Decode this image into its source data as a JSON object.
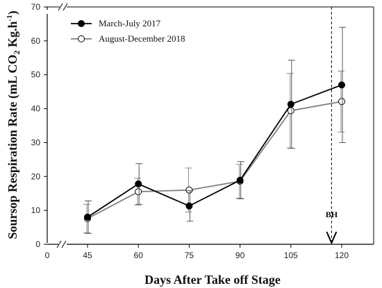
{
  "chart_data": {
    "type": "line",
    "xlabel": "Days After Take off Stage",
    "ylabel_parts": {
      "prefix": "Soursop Respiration Rate (mL CO",
      "subscript": "2",
      "middle": " Kg.h",
      "superscript": "-1",
      "suffix": ")"
    },
    "x_ticks": [
      "0",
      "45",
      "60",
      "75",
      "90",
      "105",
      "120"
    ],
    "y_ticks": [
      "0",
      "10",
      "20",
      "30",
      "40",
      "50",
      "60",
      "70"
    ],
    "ylim": [
      0,
      70
    ],
    "x_axis_break": "between 0 and 45",
    "y_axis_break": "near 70",
    "legend_position": "top-left",
    "categories": [
      45,
      60,
      75,
      90,
      105,
      120
    ],
    "series": [
      {
        "name": "March-July 2017",
        "marker": "filled-circle",
        "color": "#000000",
        "values": [
          8.0,
          17.8,
          11.3,
          18.9,
          41.3,
          47.0
        ],
        "error": [
          4.8,
          6.0,
          4.5,
          5.5,
          13.0,
          17.0
        ]
      },
      {
        "name": "August-December 2018",
        "marker": "open-circle",
        "color": "#808080",
        "values": [
          7.6,
          15.5,
          16.0,
          18.6,
          39.4,
          42.1
        ],
        "error": [
          4.2,
          4.0,
          6.5,
          5.0,
          11.0,
          9.0
        ]
      }
    ],
    "annotation": {
      "label": "BH",
      "x": 117,
      "style": "dashed vertical line with downward arrow"
    }
  }
}
